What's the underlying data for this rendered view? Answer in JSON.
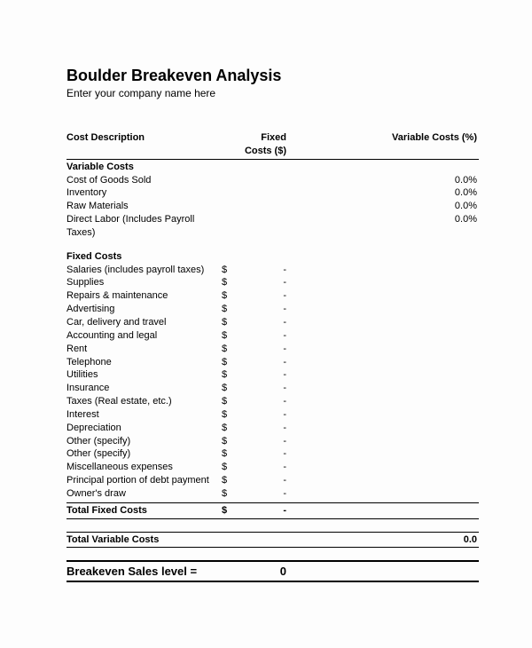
{
  "title": "Boulder Breakeven Analysis",
  "subtitle": "Enter your company name here",
  "headers": {
    "desc": "Cost Description",
    "fixed": "Fixed Costs ($)",
    "variable": "Variable Costs (%)"
  },
  "sections": {
    "variable_label": "Variable Costs",
    "fixed_label": "Fixed Costs"
  },
  "variable_items": [
    {
      "label": "Cost of Goods Sold",
      "pct": "0.0%"
    },
    {
      "label": "Inventory",
      "pct": "0.0%"
    },
    {
      "label": "Raw Materials",
      "pct": "0.0%"
    },
    {
      "label": "Direct Labor (Includes Payroll Taxes)",
      "pct": "0.0%"
    }
  ],
  "fixed_items": [
    {
      "label": "Salaries (includes payroll taxes)",
      "sym": "$",
      "val": "-"
    },
    {
      "label": "Supplies",
      "sym": "$",
      "val": "-"
    },
    {
      "label": "Repairs & maintenance",
      "sym": "$",
      "val": "-"
    },
    {
      "label": "Advertising",
      "sym": "$",
      "val": "-"
    },
    {
      "label": "Car, delivery and travel",
      "sym": "$",
      "val": "-"
    },
    {
      "label": "Accounting and legal",
      "sym": "$",
      "val": "-"
    },
    {
      "label": "Rent",
      "sym": "$",
      "val": "-"
    },
    {
      "label": "Telephone",
      "sym": "$",
      "val": "-"
    },
    {
      "label": "Utilities",
      "sym": "$",
      "val": "-"
    },
    {
      "label": "Insurance",
      "sym": "$",
      "val": "-"
    },
    {
      "label": "Taxes (Real estate, etc.)",
      "sym": "$",
      "val": "-"
    },
    {
      "label": "Interest",
      "sym": "$",
      "val": "-"
    },
    {
      "label": "Depreciation",
      "sym": "$",
      "val": "-"
    },
    {
      "label": "Other (specify)",
      "sym": "$",
      "val": "-"
    },
    {
      "label": "Other (specify)",
      "sym": "$",
      "val": "-"
    },
    {
      "label": "Miscellaneous expenses",
      "sym": "$",
      "val": "-"
    },
    {
      "label": "Principal portion of debt payment",
      "sym": "$",
      "val": "-"
    },
    {
      "label": "Owner's draw",
      "sym": "$",
      "val": "-"
    }
  ],
  "totals": {
    "fixed_label": "Total Fixed Costs",
    "fixed_sym": "$",
    "fixed_val": "-",
    "variable_label": "Total Variable Costs",
    "variable_val": "0.0"
  },
  "breakeven": {
    "label": "Breakeven Sales level   =",
    "value": "0"
  },
  "styling": {
    "type": "table",
    "background_color": "#fdfdfd",
    "text_color": "#000000",
    "border_color": "#000000",
    "title_fontsize": 18,
    "body_fontsize": 11,
    "breakeven_fontsize": 13,
    "col_widths": {
      "desc": 175,
      "fixed_sym": 18,
      "fixed_val": 55
    }
  }
}
